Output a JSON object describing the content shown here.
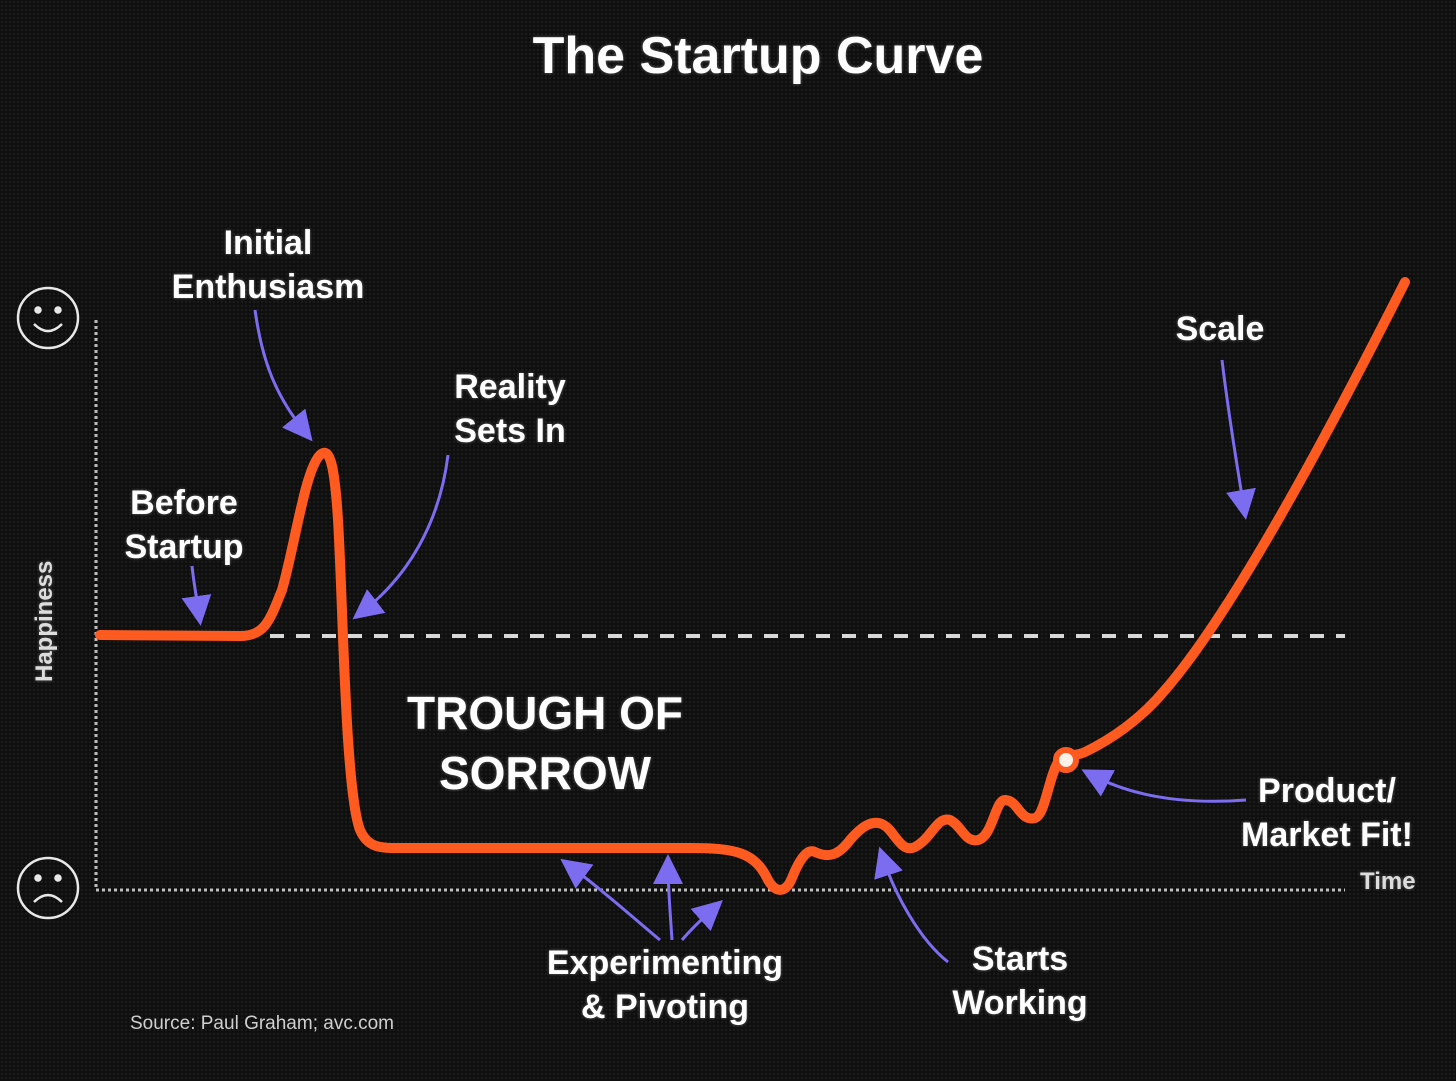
{
  "title": "The Startup Curve",
  "labels": {
    "initial_enthusiasm": [
      "Initial",
      "Enthusiasm"
    ],
    "reality_sets_in": [
      "Reality",
      "Sets In"
    ],
    "before_startup": [
      "Before",
      "Startup"
    ],
    "trough_of_sorrow": [
      "TROUGH OF",
      "SORROW"
    ],
    "experimenting_pivoting": [
      "Experimenting",
      "& Pivoting"
    ],
    "starts_working": [
      "Starts",
      "Working"
    ],
    "product_market_fit": [
      "Product/",
      "Market Fit!"
    ],
    "scale": "Scale"
  },
  "axes": {
    "y_label": "Happiness",
    "x_label": "Time"
  },
  "source": "Source: Paul Graham; avc.com",
  "icons": {
    "top": "smiley-face-icon",
    "bottom": "sad-face-icon"
  },
  "colors": {
    "curve": "#ff5a1f",
    "arrows": "#7b6cf0",
    "baseline": "#d8d8d8",
    "text": "#ffffff"
  }
}
